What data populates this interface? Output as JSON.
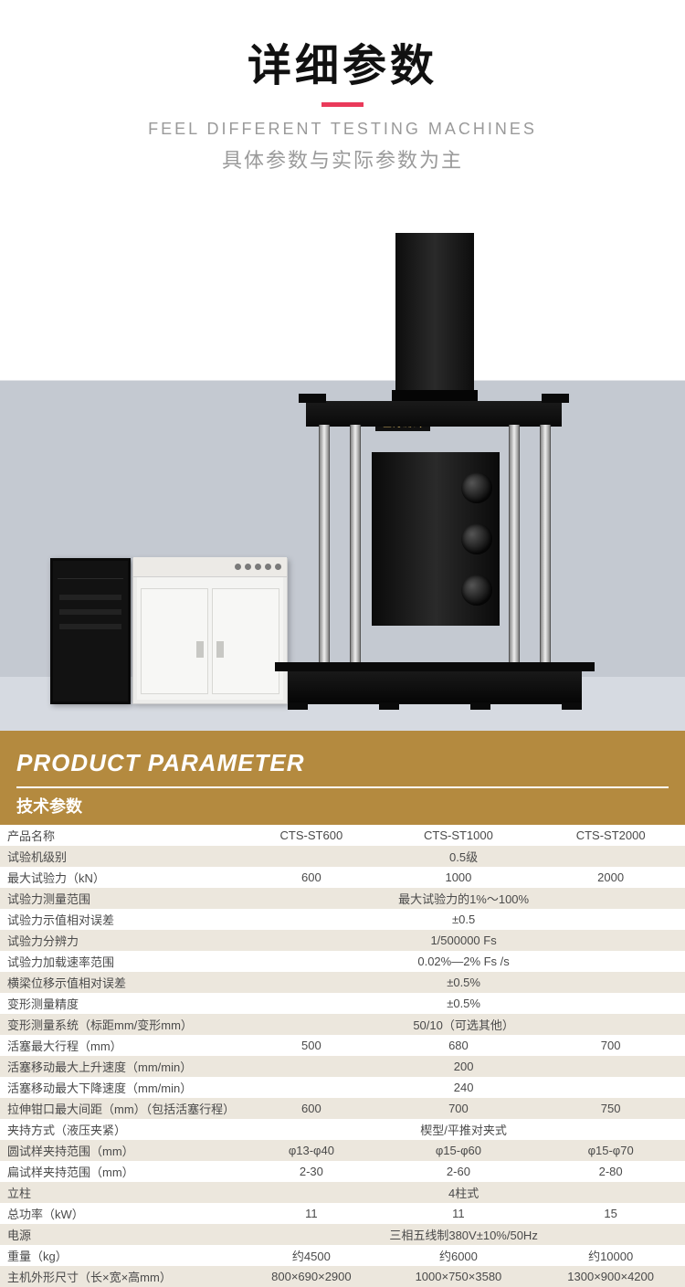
{
  "header": {
    "title": "详细参数",
    "subtitle_en": "FEEL DIFFERENT TESTING MACHINES",
    "subtitle_cn": "具体参数与实际参数为主",
    "underline_color": "#ea3a5a"
  },
  "machine": {
    "brand_label": "全力测试",
    "bg_gradient_top": "#ffffff",
    "bg_gradient_floor": "#c4c9d1"
  },
  "param_header": {
    "en": "PRODUCT PARAMETER",
    "cn": "技术参数",
    "bg_color": "#b48a3f",
    "text_color": "#ffffff"
  },
  "table": {
    "row_even_bg": "#ece7dd",
    "row_odd_bg": "#ffffff",
    "text_color": "#4a4a4a",
    "columns": [
      "CTS-ST600",
      "CTS-ST1000",
      "CTS-ST2000"
    ],
    "rows": [
      {
        "label": "产品名称",
        "values": [
          "CTS-ST600",
          "CTS-ST1000",
          "CTS-ST2000"
        ]
      },
      {
        "label": "试验机级别",
        "span": "0.5级"
      },
      {
        "label": "最大试验力（kN）",
        "values": [
          "600",
          "1000",
          "2000"
        ]
      },
      {
        "label": "试验力测量范围",
        "span": "最大试验力的1%～100%"
      },
      {
        "label": "试验力示值相对误差",
        "span": "±0.5"
      },
      {
        "label": "试验力分辨力",
        "span": "1/500000 Fs"
      },
      {
        "label": "试验力加载速率范围",
        "span": "0.02%—2% Fs /s"
      },
      {
        "label": "横梁位移示值相对误差",
        "span": "±0.5%"
      },
      {
        "label": "变形测量精度",
        "span": "±0.5%"
      },
      {
        "label": "变形测量系统（标距mm/变形mm）",
        "span": "50/10（可选其他）"
      },
      {
        "label": "活塞最大行程（mm）",
        "values": [
          "500",
          "680",
          "700"
        ]
      },
      {
        "label": "活塞移动最大上升速度（mm/min）",
        "span": "200"
      },
      {
        "label": "活塞移动最大下降速度（mm/min）",
        "span": "240"
      },
      {
        "label": "拉伸钳口最大间距（mm）（包括活塞行程）",
        "values": [
          "600",
          "700",
          "750"
        ]
      },
      {
        "label": "夹持方式（液压夹紧）",
        "span": "楔型/平推对夹式"
      },
      {
        "label": "圆试样夹持范围（mm）",
        "values": [
          "φ13-φ40",
          "φ15-φ60",
          "φ15-φ70"
        ]
      },
      {
        "label": "扁试样夹持范围（mm）",
        "values": [
          "2-30",
          "2-60",
          "2-80"
        ]
      },
      {
        "label": "立柱",
        "span": "4柱式"
      },
      {
        "label": "总功率（kW）",
        "values": [
          "11",
          "11",
          "15"
        ]
      },
      {
        "label": "电源",
        "span": "三相五线制380V±10%/50Hz"
      },
      {
        "label": "重量（kg）",
        "values": [
          "约4500",
          "约6000",
          "约10000"
        ]
      },
      {
        "label": "主机外形尺寸（长×宽×高mm）",
        "values": [
          "800×690×2900",
          "1000×750×3580",
          "1300×900×4200"
        ]
      }
    ]
  }
}
